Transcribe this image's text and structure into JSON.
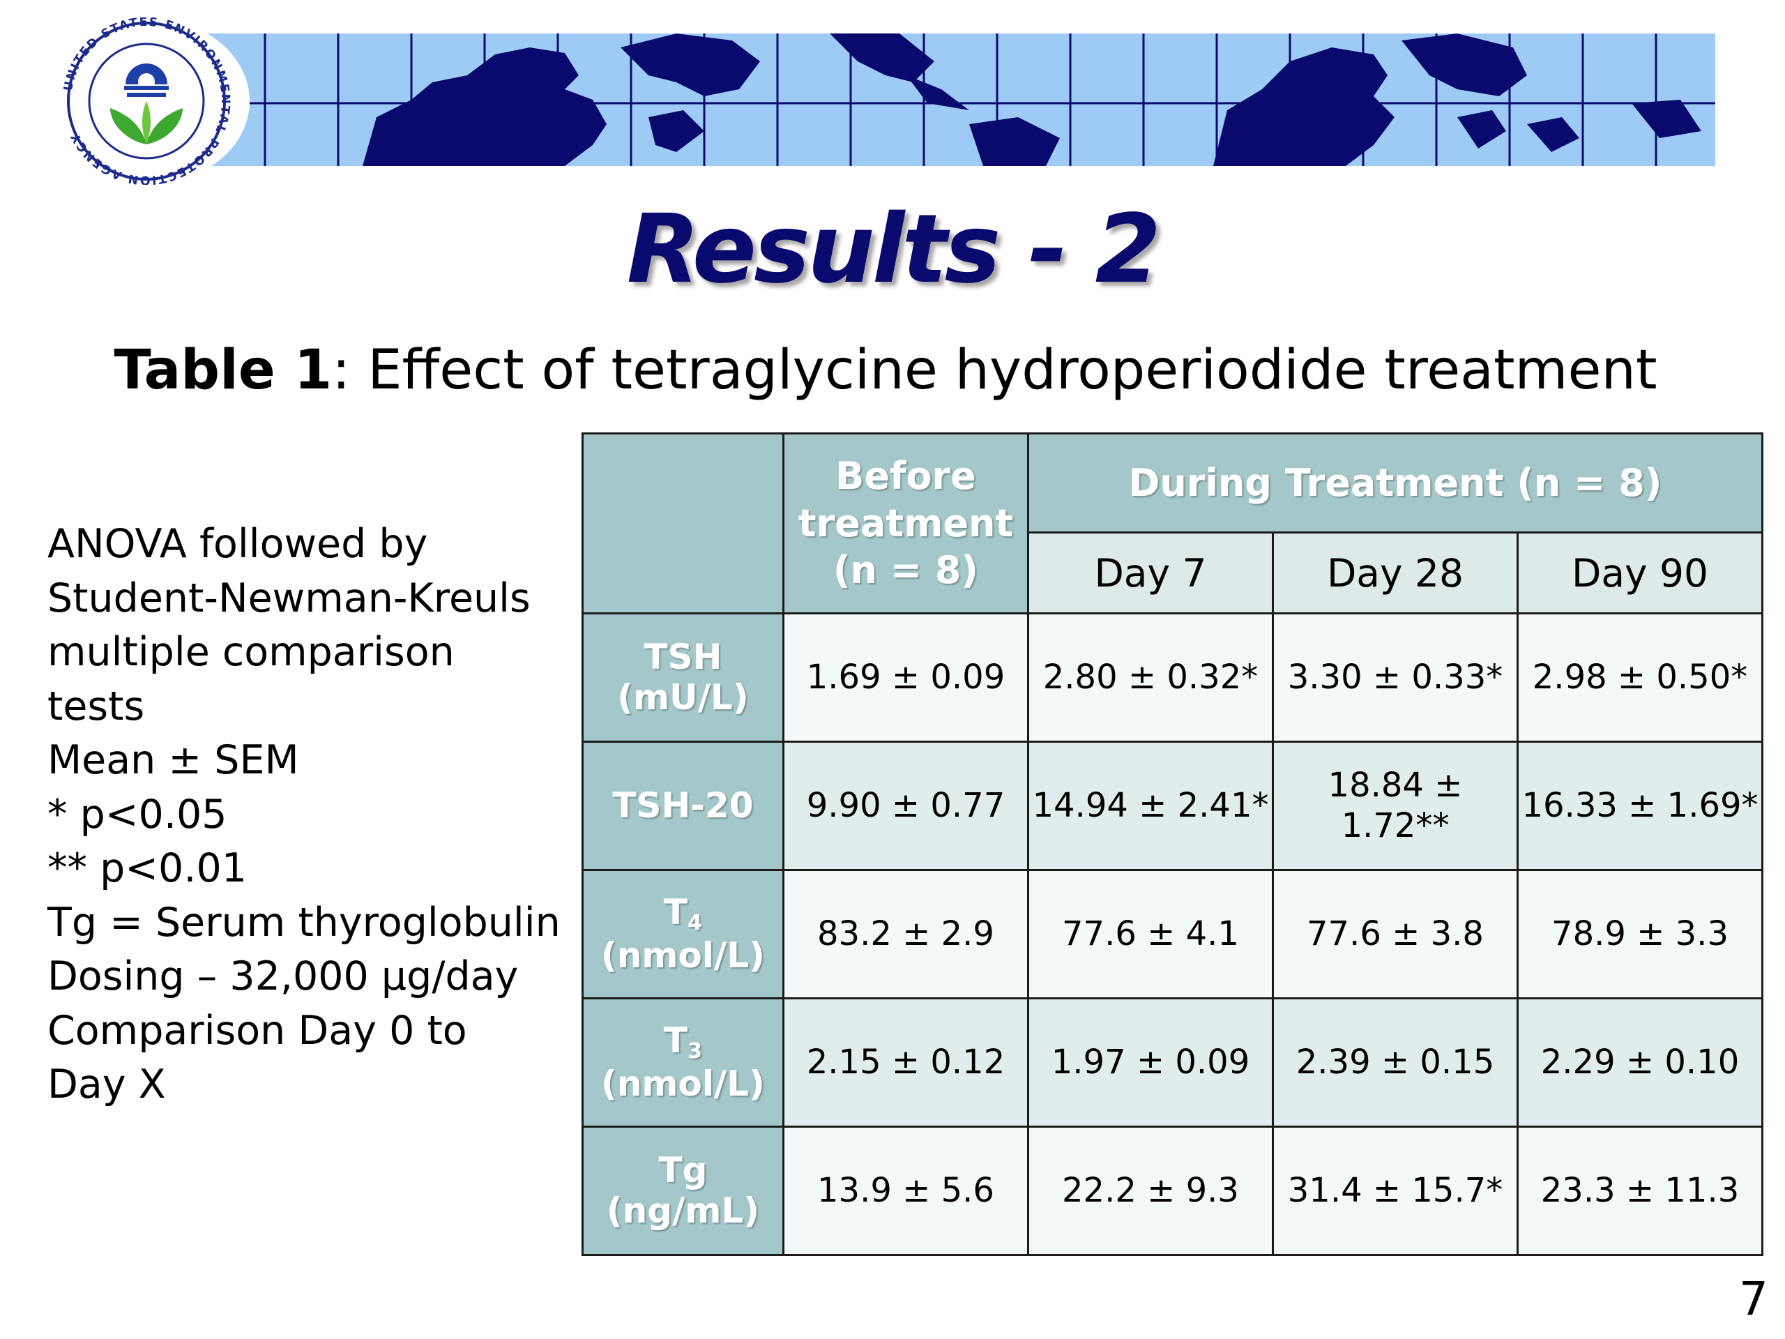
{
  "logo": {
    "icon": "epa-seal-icon",
    "text": "UNITED STATES ENVIRONMENTAL PROTECTION AGENCY"
  },
  "banner": {
    "icon": "world-map-icon",
    "colors": {
      "sky": "#9ecbf5",
      "land": "#0a0a6e",
      "grid": "#0a0a6e"
    }
  },
  "title": "Results - 2",
  "caption": {
    "label": "Table 1",
    "text": ": Effect of tetraglycine hydroperiodide treatment"
  },
  "notes": [
    "ANOVA followed by",
    "Student-Newman-Kreuls",
    "multiple comparison",
    "tests",
    "Mean ± SEM",
    "* p<0.05",
    "** p<0.01",
    "Tg = Serum thyroglobulin",
    "Dosing – 32,000 µg/day",
    "Comparison Day 0 to",
    "Day X"
  ],
  "table": {
    "before_header": [
      "Before",
      "treatment",
      "(n = 8)"
    ],
    "during_header": "During Treatment (n = 8)",
    "days": [
      "Day 7",
      "Day 28",
      "Day 90"
    ],
    "rows": [
      {
        "label": "TSH",
        "unit": "(mU/L)",
        "values": [
          "1.69 ± 0.09",
          "2.80 ± 0.32*",
          "3.30 ± 0.33*",
          "2.98 ± 0.50*"
        ]
      },
      {
        "label": "TSH-20",
        "unit": "",
        "values": [
          "9.90 ± 0.77",
          "14.94 ± 2.41*",
          "18.84 ± 1.72**",
          "16.33 ± 1.69*"
        ]
      },
      {
        "label": "T",
        "sub": "4",
        "unit": "(nmol/L)",
        "values": [
          "83.2 ± 2.9",
          "77.6 ± 4.1",
          "77.6 ± 3.8",
          "78.9 ± 3.3"
        ]
      },
      {
        "label": "T",
        "sub": "3",
        "unit": "(nmol/L)",
        "values": [
          "2.15 ± 0.12",
          "1.97 ± 0.09",
          "2.39 ± 0.15",
          "2.29 ± 0.10"
        ]
      },
      {
        "label": "Tg",
        "unit": "(ng/mL)",
        "values": [
          "13.9 ± 5.6",
          "22.2 ± 9.3",
          "31.4 ± 15.7*",
          "23.3 ± 11.3"
        ]
      }
    ],
    "colors": {
      "header": "#a4c8ca",
      "day": "#deeaea",
      "row_light": "#f3f8f8",
      "row_dark": "#e1ecec",
      "border": "#1b1b1b"
    }
  },
  "page_number": "7"
}
